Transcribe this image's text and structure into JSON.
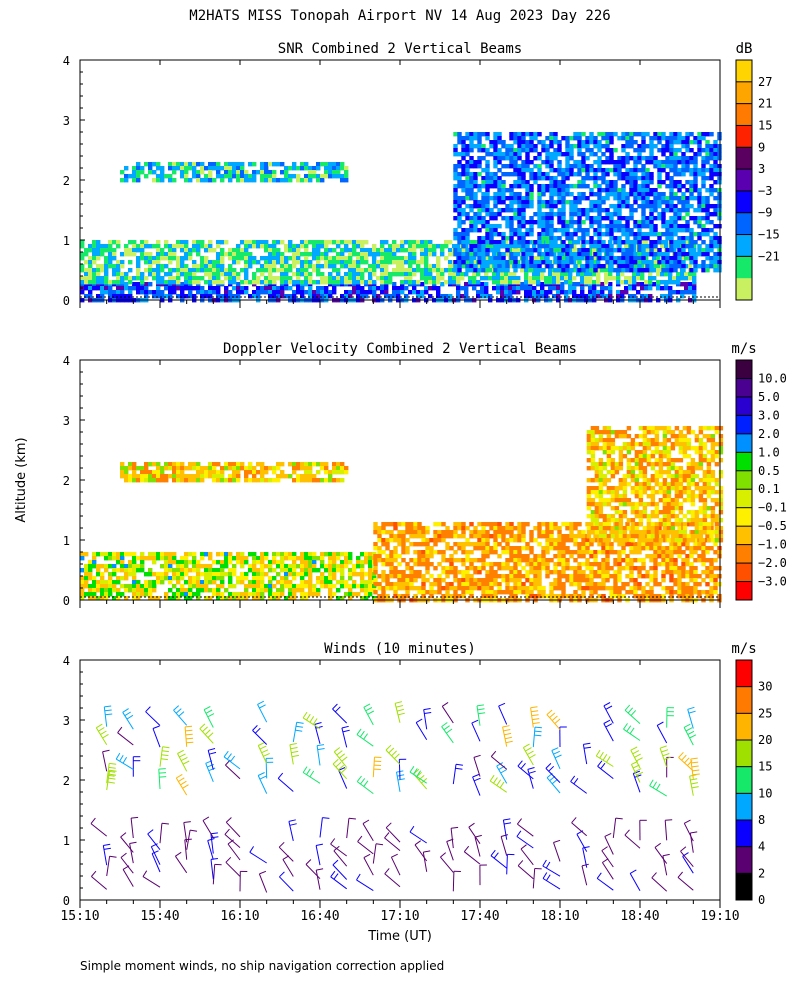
{
  "header": {
    "title": "M2HATS MISS Tonopah Airport NV  14 Aug 2023 Day 226"
  },
  "footer": {
    "note": "Simple moment winds, no ship navigation correction applied"
  },
  "axes": {
    "ylabel": "Altitude (km)",
    "xlabel": "Time (UT)"
  },
  "chart_data": [
    {
      "type": "heatmap",
      "title": "SNR Combined 2 Vertical Beams",
      "unit": "dB",
      "x_ticks": [
        "15:10",
        "15:40",
        "16:10",
        "16:40",
        "17:10",
        "17:40",
        "18:10",
        "18:40",
        "19:10"
      ],
      "xlim": [
        "15:10",
        "19:10"
      ],
      "y_ticks": [
        0,
        1,
        2,
        3,
        4
      ],
      "ylim": [
        0,
        4
      ],
      "colorbar": {
        "labels": [
          "27",
          "21",
          "15",
          "9",
          "3",
          "−3",
          "−9",
          "−15",
          "−21"
        ],
        "colors": [
          "#ffd400",
          "#ffa500",
          "#ff7a00",
          "#ff2200",
          "#5a0060",
          "#5a00b0",
          "#0a00ff",
          "#0064ff",
          "#00a8ff",
          "#16e86a",
          "#c8f060"
        ]
      },
      "layers": [
        {
          "time_start": "15:10",
          "time_end": "19:00",
          "alt_base_km": 0.0,
          "alt_top_km": 0.3,
          "snr_db": -3
        },
        {
          "time_start": "15:10",
          "time_end": "19:00",
          "alt_base_km": 0.3,
          "alt_top_km": 1.0,
          "snr_db": -15
        },
        {
          "time_start": "15:25",
          "time_end": "16:50",
          "alt_base_km": 2.0,
          "alt_top_km": 2.3,
          "snr_db": -12
        },
        {
          "time_start": "17:30",
          "time_end": "19:10",
          "alt_base_km": 0.5,
          "alt_top_km": 2.8,
          "snr_db": -6
        }
      ]
    },
    {
      "type": "heatmap",
      "title": "Doppler Velocity Combined 2 Vertical Beams",
      "unit": "m/s",
      "x_ticks": [
        "15:10",
        "15:40",
        "16:10",
        "16:40",
        "17:10",
        "17:40",
        "18:10",
        "18:40",
        "19:10"
      ],
      "xlim": [
        "15:10",
        "19:10"
      ],
      "y_ticks": [
        0,
        1,
        2,
        3,
        4
      ],
      "ylim": [
        0,
        4
      ],
      "colorbar": {
        "labels": [
          "10.0",
          "5.0",
          "3.0",
          "2.0",
          "1.0",
          "0.5",
          "0.1",
          "−0.1",
          "−0.5",
          "−1.0",
          "−2.0",
          "−3.0"
        ],
        "colors": [
          "#3a0040",
          "#4a0090",
          "#2a00d0",
          "#0020ff",
          "#0090ff",
          "#00e000",
          "#80e000",
          "#d8f000",
          "#fff000",
          "#ffc000",
          "#ff8000",
          "#ff5000",
          "#ff0000"
        ]
      },
      "layers": [
        {
          "time_start": "15:10",
          "time_end": "17:00",
          "alt_base_km": 0.0,
          "alt_top_km": 0.8,
          "velocity_ms": -0.3
        },
        {
          "time_start": "15:25",
          "time_end": "16:50",
          "alt_base_km": 2.0,
          "alt_top_km": 2.3,
          "velocity_ms": -0.8
        },
        {
          "time_start": "17:00",
          "time_end": "19:10",
          "alt_base_km": 0.0,
          "alt_top_km": 1.3,
          "velocity_ms": -1.5
        },
        {
          "time_start": "18:20",
          "time_end": "19:10",
          "alt_base_km": 1.0,
          "alt_top_km": 2.9,
          "velocity_ms": -1.0
        }
      ]
    },
    {
      "type": "scatter",
      "title": "Winds (10 minutes)",
      "unit": "m/s",
      "x_ticks": [
        "15:10",
        "15:40",
        "16:10",
        "16:40",
        "17:10",
        "17:40",
        "18:10",
        "18:40",
        "19:10"
      ],
      "xlim": [
        "15:10",
        "19:10"
      ],
      "y_ticks": [
        0,
        1,
        2,
        3,
        4
      ],
      "ylim": [
        0,
        4
      ],
      "colorbar": {
        "labels": [
          "30",
          "25",
          "20",
          "15",
          "10",
          "8",
          "4",
          "2",
          "0"
        ],
        "colors": [
          "#ff0000",
          "#ff7a00",
          "#ffb400",
          "#a0e000",
          "#16e86a",
          "#00a8ff",
          "#0a00ff",
          "#5a0070",
          "#000000"
        ]
      },
      "barb_times": [
        "15:20",
        "15:30",
        "15:40",
        "15:50",
        "16:00",
        "16:10",
        "16:20",
        "16:30",
        "16:40",
        "16:50",
        "17:00",
        "17:10",
        "17:20",
        "17:30",
        "17:40",
        "17:50",
        "18:00",
        "18:10",
        "18:20",
        "18:30",
        "18:40",
        "18:50",
        "19:00"
      ],
      "barb_altitudes_km": [
        0.2,
        0.4,
        0.6,
        0.8,
        1.0,
        1.8,
        2.0,
        2.2,
        2.6,
        2.9
      ]
    }
  ]
}
